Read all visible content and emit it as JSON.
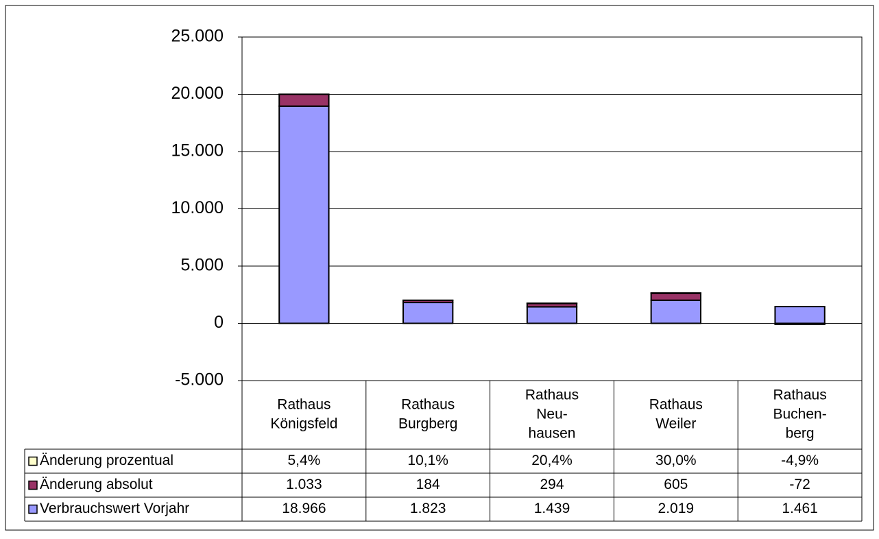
{
  "chart_data": {
    "type": "bar",
    "stacked": true,
    "categories": [
      [
        "Rathaus",
        "Königsfeld"
      ],
      [
        "Rathaus",
        "Burgberg"
      ],
      [
        "Rathaus",
        "Neu-",
        "hausen"
      ],
      [
        "Rathaus",
        "Weiler"
      ],
      [
        "Rathaus",
        "Buchen-",
        "berg"
      ]
    ],
    "series": [
      {
        "name": "Verbrauchswert Vorjahr",
        "color": "#9999ff",
        "values": [
          18966,
          1823,
          1439,
          2019,
          1461
        ],
        "value_labels": [
          "18.966",
          "1.823",
          "1.439",
          "2.019",
          "1.461"
        ]
      },
      {
        "name": "Änderung absolut",
        "color": "#993366",
        "values": [
          1033,
          184,
          294,
          605,
          -72
        ],
        "value_labels": [
          "1.033",
          "184",
          "294",
          "605",
          "-72"
        ]
      },
      {
        "name": "Änderung prozentual",
        "color": "#ffffcc",
        "values": [
          5.4,
          10.1,
          20.4,
          30.0,
          -4.9
        ],
        "value_labels": [
          "5,4%",
          "10,1%",
          "20,4%",
          "30,0%",
          "-4,9%"
        ]
      }
    ],
    "ylim": [
      -5000,
      25000
    ],
    "yticks": [
      {
        "value": -5000,
        "label": "-5.000"
      },
      0,
      {
        "value": 5000,
        "label": "5.000"
      },
      {
        "value": 10000,
        "label": "10.000"
      },
      {
        "value": 15000,
        "label": "15.000"
      },
      {
        "value": 20000,
        "label": "20.000"
      },
      {
        "value": 25000,
        "label": "25.000"
      }
    ],
    "grid": true,
    "legend": "data-table"
  }
}
